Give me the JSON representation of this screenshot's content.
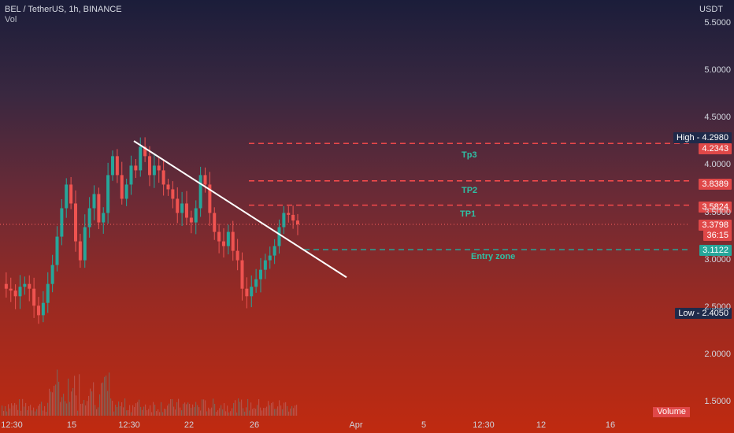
{
  "header": {
    "title": "BEL / TetherUS, 1h, BINANCE",
    "vol": "Vol"
  },
  "axis": {
    "unit": "USDT",
    "y_ticks": [
      "5.5000",
      "5.0000",
      "4.5000",
      "4.0000",
      "3.5000",
      "3.0000",
      "2.5000",
      "2.0000",
      "1.5000"
    ],
    "x_ticks": [
      "12:30",
      "15",
      "12:30",
      "22",
      "26",
      "Apr",
      "5",
      "12:30",
      "12",
      "16"
    ]
  },
  "labels": {
    "high": "High - 4.2980",
    "tp3_price": "4.2343",
    "tp2_price": "3.8389",
    "tp1_price": "3.5824",
    "current_price": "3.3798",
    "countdown": "36:15",
    "entry_price": "3.1122",
    "low": "Low - 2.4050",
    "volume": "Volume"
  },
  "annotations": {
    "tp3": "Tp3",
    "tp2": "TP2",
    "tp1": "TP1",
    "entry": "Entry zone"
  },
  "colors": {
    "up": "#26a69a",
    "down": "#ef5350",
    "target_line": "#ff4d4d",
    "entry_line": "#26a69a",
    "trendline": "#ffffff"
  },
  "chart_data": {
    "type": "line",
    "title": "BEL / TetherUS, 1h, BINANCE",
    "xlabel": "",
    "ylabel": "USDT",
    "ylim": [
      1.3,
      5.75
    ],
    "x_ticks": [
      "12:30",
      "15",
      "12:30",
      "22",
      "26",
      "Apr",
      "5",
      "12:30",
      "12",
      "16"
    ],
    "series": [
      {
        "values": [
          2.75,
          2.7,
          2.68,
          2.62,
          2.72,
          2.75,
          2.7,
          2.52,
          2.42,
          2.55,
          2.75,
          2.95,
          3.25,
          3.55,
          3.8,
          3.6,
          3.2,
          3.0,
          3.35,
          3.55,
          3.7,
          3.4,
          3.5,
          3.9,
          4.1,
          3.9,
          3.65,
          3.8,
          4.0,
          3.95,
          4.2,
          4.1,
          3.9,
          4.0,
          3.95,
          3.8,
          3.75,
          3.65,
          3.5,
          3.6,
          3.45,
          3.4,
          3.55,
          3.9,
          3.8,
          3.5,
          3.3,
          3.2,
          3.15,
          3.3,
          3.1,
          3.0,
          2.7,
          2.62,
          2.72,
          2.8,
          2.9,
          3.0,
          3.05,
          3.15,
          3.35,
          3.5,
          3.48,
          3.42,
          3.38
        ]
      }
    ],
    "levels": [
      {
        "name": "Tp3",
        "value": 4.2343
      },
      {
        "name": "TP2",
        "value": 3.8389
      },
      {
        "name": "TP1",
        "value": 3.5824
      },
      {
        "name": "Entry zone",
        "value": 3.1122
      }
    ],
    "high": 4.298,
    "low": 2.405,
    "last": 3.3798,
    "trendline": {
      "from": [
        170,
        4.26
      ],
      "to": [
        440,
        2.82
      ]
    }
  }
}
